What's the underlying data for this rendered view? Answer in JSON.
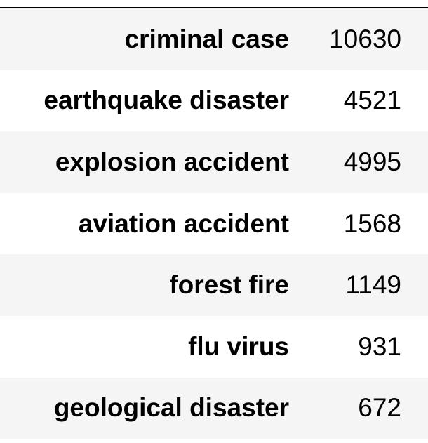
{
  "table": {
    "rows": [
      {
        "label": "criminal case",
        "value": "10630"
      },
      {
        "label": "earthquake disaster",
        "value": "4521"
      },
      {
        "label": "explosion accident",
        "value": "4995"
      },
      {
        "label": "aviation accident",
        "value": "1568"
      },
      {
        "label": "forest fire",
        "value": "1149"
      },
      {
        "label": "flu virus",
        "value": "931"
      },
      {
        "label": "geological disaster",
        "value": "672"
      }
    ]
  },
  "colors": {
    "row_stripe": "#f5f5f5",
    "row_plain": "#ffffff",
    "text": "#000000",
    "rule": "#000000"
  }
}
